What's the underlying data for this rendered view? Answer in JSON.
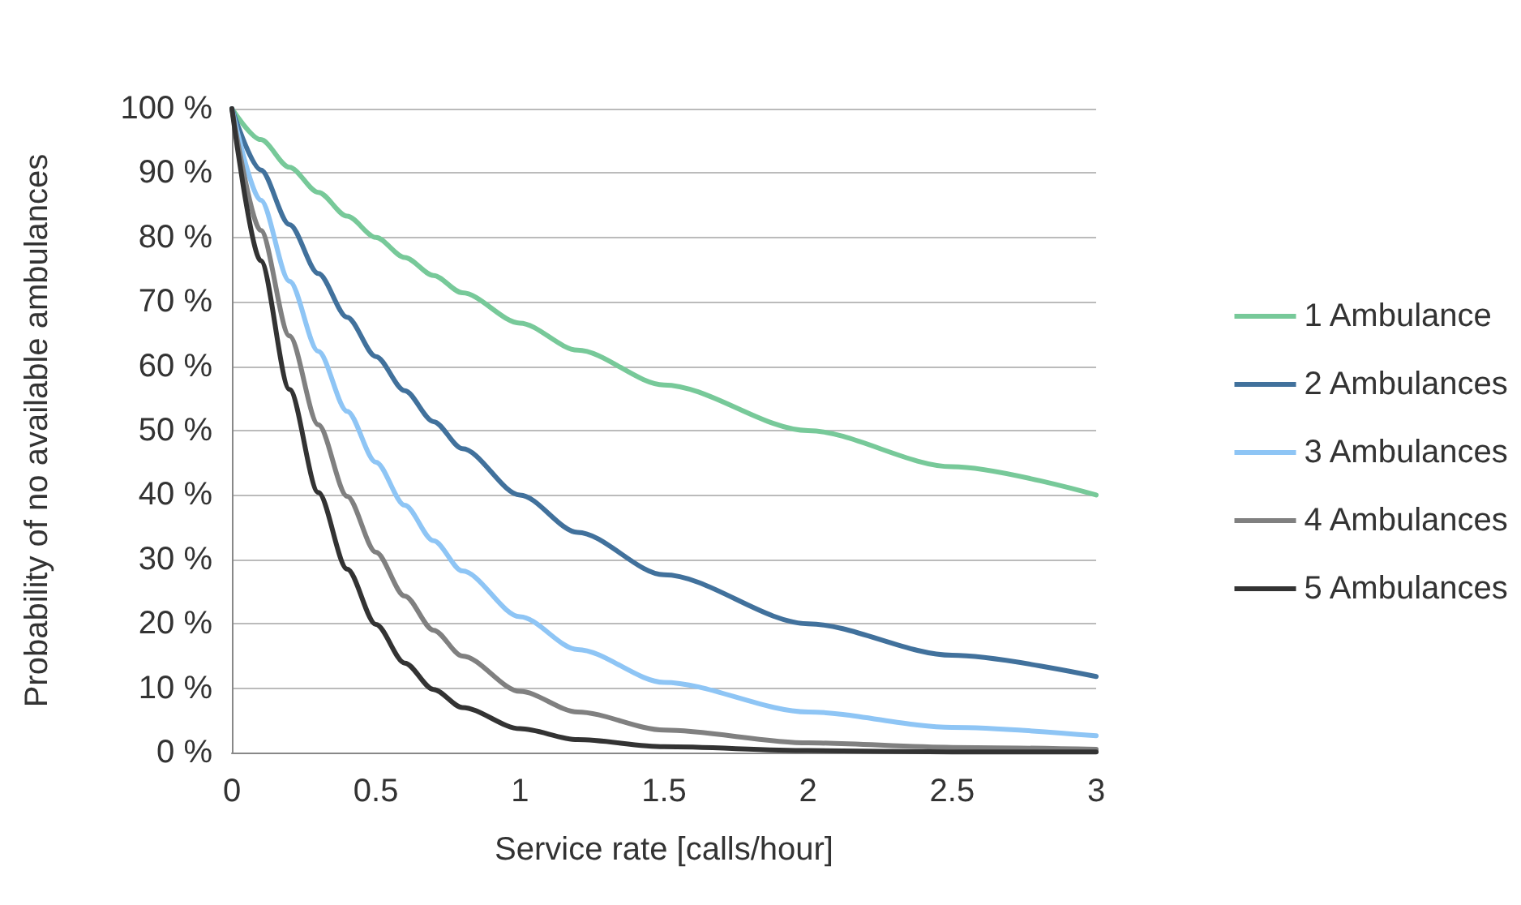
{
  "chart_data": {
    "type": "line",
    "xlabel": "Service rate [calls/hour]",
    "ylabel": "Probability of no available ambulances",
    "x": [
      0,
      0.1,
      0.2,
      0.3,
      0.4,
      0.5,
      0.6,
      0.7,
      0.8,
      1,
      1.2,
      1.5,
      2,
      2.5,
      3
    ],
    "series": [
      {
        "name": "1 Ambulance",
        "color": "#77c999",
        "values": [
          100,
          95.2,
          90.9,
          87.0,
          83.3,
          80.0,
          76.9,
          74.1,
          71.4,
          66.7,
          62.5,
          57.1,
          50.0,
          44.4,
          40.0
        ]
      },
      {
        "name": "2 Ambulances",
        "color": "#41719c",
        "values": [
          100,
          90.5,
          82.0,
          74.4,
          67.6,
          61.5,
          56.2,
          51.4,
          47.2,
          40.0,
          34.2,
          27.6,
          20.0,
          15.1,
          11.8
        ]
      },
      {
        "name": "3 Ambulances",
        "color": "#8ec5f5",
        "values": [
          100,
          85.8,
          73.2,
          62.3,
          53.0,
          45.1,
          38.4,
          32.9,
          28.2,
          21.1,
          16.0,
          10.9,
          6.3,
          3.9,
          2.6
        ]
      },
      {
        "name": "4 Ambulances",
        "color": "#808080",
        "values": [
          100,
          81.1,
          64.7,
          50.9,
          39.8,
          31.1,
          24.3,
          19.0,
          15.0,
          9.5,
          6.3,
          3.5,
          1.5,
          0.8,
          0.5
        ]
      },
      {
        "name": "5 Ambulances",
        "color": "#333333",
        "values": [
          100,
          76.4,
          56.4,
          40.4,
          28.5,
          19.9,
          13.9,
          9.8,
          7.0,
          3.7,
          2.0,
          0.9,
          0.3,
          0.1,
          0.1
        ]
      }
    ],
    "xlim": [
      0,
      3
    ],
    "xticks": [
      0,
      0.5,
      1,
      1.5,
      2,
      2.5,
      3
    ],
    "ylim": [
      0,
      100
    ],
    "yticks": [
      {
        "value": 0,
        "label": "0 %"
      },
      {
        "value": 10,
        "label": "10 %"
      },
      {
        "value": 20,
        "label": "20 %"
      },
      {
        "value": 30,
        "label": "30 %"
      },
      {
        "value": 40,
        "label": "40 %"
      },
      {
        "value": 50,
        "label": "50 %"
      },
      {
        "value": 60,
        "label": "60 %"
      },
      {
        "value": 70,
        "label": "70 %"
      },
      {
        "value": 80,
        "label": "80 %"
      },
      {
        "value": 90,
        "label": "90 %"
      },
      {
        "value": 100,
        "label": "100 %"
      }
    ],
    "grid": "y",
    "legend": "right",
    "marker": "none",
    "line_style": "solid"
  }
}
